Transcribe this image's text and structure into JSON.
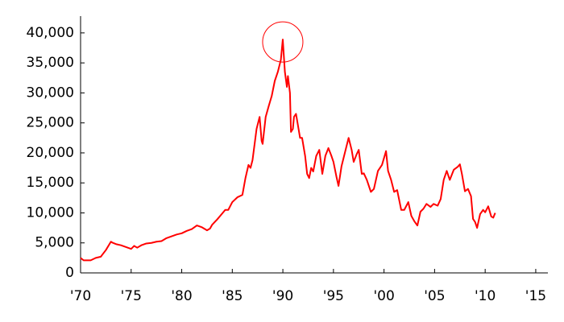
{
  "chart_data": {
    "type": "line",
    "x": [
      1970.0,
      1970.3,
      1971.0,
      1971.5,
      1972.0,
      1972.5,
      1973.0,
      1973.2,
      1973.5,
      1974.0,
      1974.5,
      1975.0,
      1975.3,
      1975.6,
      1976.0,
      1976.5,
      1977.0,
      1977.5,
      1978.0,
      1978.5,
      1979.0,
      1979.5,
      1980.0,
      1980.5,
      1981.0,
      1981.5,
      1982.0,
      1982.5,
      1982.8,
      1983.0,
      1983.5,
      1984.0,
      1984.3,
      1984.6,
      1985.0,
      1985.5,
      1986.0,
      1986.3,
      1986.6,
      1986.8,
      1987.0,
      1987.4,
      1987.7,
      1987.9,
      1988.0,
      1988.3,
      1988.6,
      1988.9,
      1989.2,
      1989.5,
      1989.8,
      1989.99,
      1990.2,
      1990.4,
      1990.5,
      1990.7,
      1990.8,
      1990.99,
      1991.1,
      1991.3,
      1991.5,
      1991.7,
      1991.9,
      1992.2,
      1992.4,
      1992.6,
      1992.8,
      1993.0,
      1993.3,
      1993.6,
      1993.9,
      1994.2,
      1994.5,
      1994.8,
      1995.0,
      1995.3,
      1995.5,
      1995.8,
      1996.2,
      1996.5,
      1996.8,
      1997.0,
      1997.3,
      1997.5,
      1997.8,
      1998.0,
      1998.3,
      1998.7,
      1999.0,
      1999.4,
      1999.8,
      2000.2,
      2000.4,
      2000.7,
      2001.0,
      2001.3,
      2001.7,
      2002.0,
      2002.4,
      2002.7,
      2003.0,
      2003.3,
      2003.6,
      2003.9,
      2004.2,
      2004.6,
      2004.9,
      2005.3,
      2005.6,
      2005.9,
      2006.2,
      2006.5,
      2006.9,
      2007.3,
      2007.5,
      2007.7,
      2008.0,
      2008.3,
      2008.6,
      2008.8,
      2009.0,
      2009.2,
      2009.5,
      2009.8,
      2010.0,
      2010.3,
      2010.6,
      2010.8,
      2010.99
    ],
    "series": [
      {
        "color": "#ff0000",
        "values": [
          2500,
          2100,
          2100,
          2500,
          2700,
          3800,
          5200,
          5000,
          4800,
          4600,
          4300,
          4000,
          4500,
          4200,
          4600,
          4900,
          5000,
          5200,
          5300,
          5800,
          6100,
          6400,
          6600,
          7000,
          7300,
          7900,
          7600,
          7100,
          7400,
          8000,
          8900,
          9900,
          10500,
          10500,
          11800,
          12600,
          13000,
          15800,
          18000,
          17500,
          18800,
          24000,
          26000,
          22000,
          21500,
          26000,
          27800,
          29500,
          32000,
          33500,
          35500,
          38900,
          33500,
          31000,
          32800,
          30000,
          23500,
          24000,
          26000,
          26500,
          24500,
          22500,
          22500,
          19500,
          16500,
          15800,
          17500,
          16900,
          19500,
          20500,
          16500,
          19500,
          20800,
          19500,
          18500,
          16000,
          14500,
          17800,
          20500,
          22500,
          20500,
          18500,
          19800,
          20500,
          16500,
          16600,
          15500,
          13500,
          14000,
          17000,
          18000,
          20300,
          17000,
          15500,
          13500,
          13800,
          10500,
          10500,
          11800,
          9500,
          8600,
          7900,
          10200,
          10700,
          11500,
          11000,
          11500,
          11200,
          12300,
          15500,
          17000,
          15500,
          17200,
          17700,
          18100,
          16500,
          13600,
          14000,
          12800,
          9000,
          8500,
          7500,
          9800,
          10500,
          10100,
          11100,
          9400,
          9200,
          10000
        ]
      }
    ],
    "xlim": [
      1970,
      2016.2
    ],
    "ylim": [
      0,
      42800
    ],
    "xticks": [
      {
        "value": 1970,
        "label": "'70"
      },
      {
        "value": 1975,
        "label": "'75"
      },
      {
        "value": 1980,
        "label": "'80"
      },
      {
        "value": 1985,
        "label": "'85"
      },
      {
        "value": 1990,
        "label": "'90"
      },
      {
        "value": 1995,
        "label": "'95"
      },
      {
        "value": 2000,
        "label": "'00"
      },
      {
        "value": 2005,
        "label": "'05"
      },
      {
        "value": 2010,
        "label": "'10"
      },
      {
        "value": 2015,
        "label": "'15"
      }
    ],
    "yticks": [
      0,
      {
        "value": 5000,
        "label": "5,000"
      },
      {
        "value": 10000,
        "label": "10,000"
      },
      {
        "value": 15000,
        "label": "15,000"
      },
      {
        "value": 20000,
        "label": "20,000"
      },
      {
        "value": 25000,
        "label": "25,000"
      },
      {
        "value": 30000,
        "label": "30,000"
      },
      {
        "value": 35000,
        "label": "35,000"
      },
      {
        "value": 40000,
        "label": "40,000"
      }
    ]
  }
}
